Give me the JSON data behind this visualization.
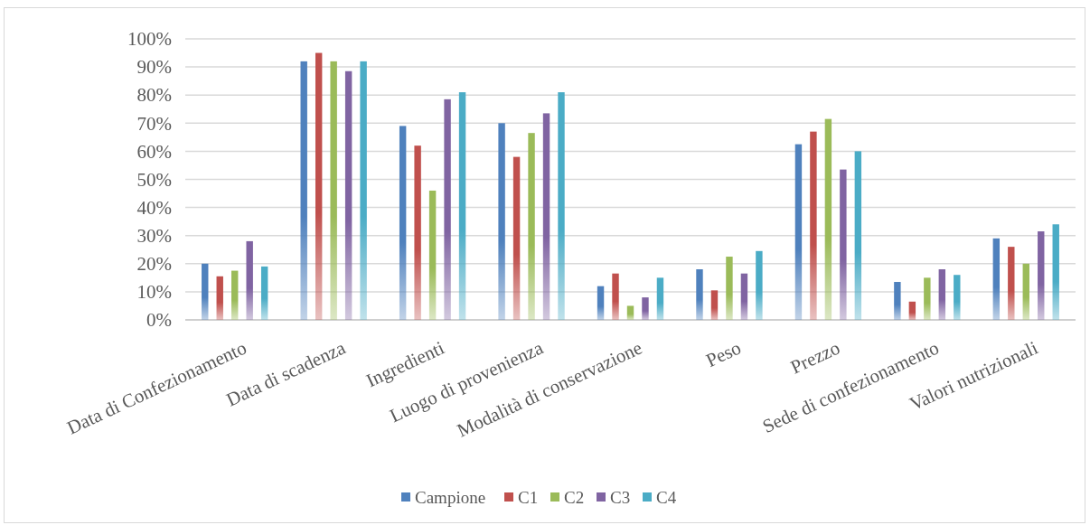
{
  "chart_data": {
    "type": "bar",
    "categories": [
      "Data di Confezionamento",
      "Data di scadenza",
      "Ingredienti",
      "Luogo di provenienza",
      "Modalità di conservazione",
      "Peso",
      "Prezzo",
      "Sede di confezionamento",
      "Valori nutrizionali"
    ],
    "series": [
      {
        "name": "Campione",
        "color": "#4f81bd",
        "values": [
          20,
          92,
          69,
          70,
          12,
          18,
          62.5,
          13.5,
          29
        ]
      },
      {
        "name": "C1",
        "color": "#c0504d",
        "values": [
          15.5,
          95,
          62,
          58,
          16.5,
          10.5,
          67,
          6.5,
          26
        ]
      },
      {
        "name": "C2",
        "color": "#9bbb59",
        "values": [
          17.5,
          92,
          46,
          66.5,
          5,
          22.5,
          71.5,
          15,
          20
        ]
      },
      {
        "name": "C3",
        "color": "#8064a2",
        "values": [
          28,
          88.5,
          78.5,
          73.5,
          8,
          16.5,
          53.5,
          18,
          31.5
        ]
      },
      {
        "name": "C4",
        "color": "#4bacc6",
        "values": [
          19,
          92,
          81,
          81,
          15,
          24.5,
          60,
          16,
          34
        ]
      }
    ],
    "ylim": [
      0,
      100
    ],
    "yticks": [
      {
        "value": 0,
        "label": "0%"
      },
      {
        "value": 10,
        "label": "10%"
      },
      {
        "value": 20,
        "label": "20%"
      },
      {
        "value": 30,
        "label": "30%"
      },
      {
        "value": 40,
        "label": "40%"
      },
      {
        "value": 50,
        "label": "50%"
      },
      {
        "value": 60,
        "label": "60%"
      },
      {
        "value": 70,
        "label": "70%"
      },
      {
        "value": 80,
        "label": "80%"
      },
      {
        "value": 90,
        "label": "90%"
      },
      {
        "value": 100,
        "label": "100%"
      }
    ],
    "grid": "y",
    "legend": "bottom"
  }
}
